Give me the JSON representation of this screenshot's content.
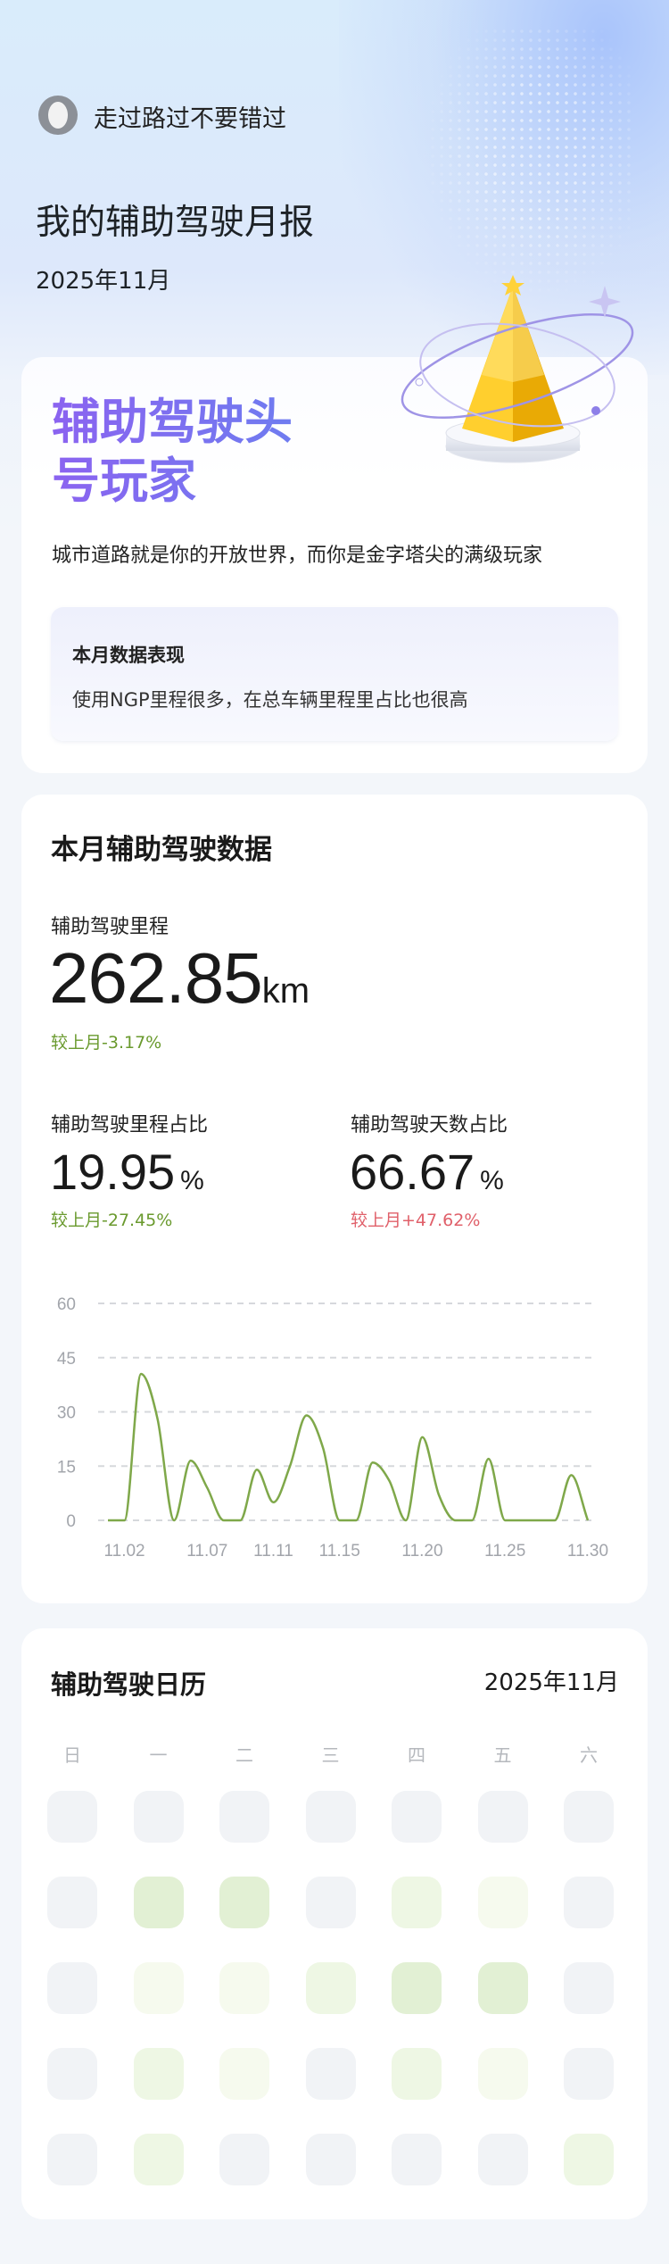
{
  "user": {
    "name": "走过路过不要错过"
  },
  "header": {
    "title": "我的辅助驾驶月报",
    "date": "2025年11月"
  },
  "badge_card": {
    "title_line1": "辅助驾驶头",
    "title_line2": "号玩家",
    "slogan": "城市道路就是你的开放世界，而你是金字塔尖的满级玩家",
    "performance": {
      "heading": "本月数据表现",
      "text": "使用NGP里程很多，在总车辆里程里占比也很高"
    },
    "icon": "gold-pyramid-trophy-icon",
    "accent": "#7b6ef0"
  },
  "stats": {
    "title": "本月辅助驾驶数据",
    "mileage": {
      "label": "辅助驾驶里程",
      "value": "262.85",
      "unit": "km",
      "change": "较上月-3.17%"
    },
    "mileage_ratio": {
      "label": "辅助驾驶里程占比",
      "value": "19.95",
      "unit": "%",
      "change": "较上月-27.45%"
    },
    "days_ratio": {
      "label": "辅助驾驶天数占比",
      "value": "66.67",
      "unit": "%",
      "change": "较上月+47.62%"
    },
    "colors": {
      "decrease": "#6a9a2e",
      "increase": "#e0606a"
    }
  },
  "chart_data": {
    "type": "line",
    "x_start_day": 1,
    "x": [
      "11.01",
      "11.02",
      "11.03",
      "11.04",
      "11.05",
      "11.06",
      "11.07",
      "11.08",
      "11.09",
      "11.10",
      "11.11",
      "11.12",
      "11.13",
      "11.14",
      "11.15",
      "11.16",
      "11.17",
      "11.18",
      "11.19",
      "11.20",
      "11.21",
      "11.22",
      "11.23",
      "11.24",
      "11.25",
      "11.26",
      "11.27",
      "11.28",
      "11.29",
      "11.30"
    ],
    "values": [
      0,
      0,
      40.5,
      28,
      0,
      16.5,
      9,
      0,
      0,
      14,
      5,
      15,
      29,
      20,
      0,
      0,
      16,
      11,
      0,
      23,
      7,
      0,
      0,
      17,
      0,
      0,
      0,
      0,
      12.5,
      0
    ],
    "x_tick_labels": [
      "11.02",
      "11.07",
      "11.11",
      "11.15",
      "11.20",
      "11.25",
      "11.30"
    ],
    "y_tick_labels": [
      "0",
      "15",
      "30",
      "45",
      "60"
    ],
    "ylim": [
      0,
      60
    ],
    "grid": true,
    "grid_style": "dashed",
    "line_color": "#7fa84a"
  },
  "calendar": {
    "title": "辅助驾驶日历",
    "month": "2025年11月",
    "weekdays": [
      "日",
      "一",
      "二",
      "三",
      "四",
      "五",
      "六"
    ],
    "levels": [
      [
        0,
        0,
        0,
        0,
        0,
        0,
        0
      ],
      [
        0,
        3,
        3,
        0,
        2,
        1,
        0
      ],
      [
        0,
        1,
        1,
        2,
        3,
        3,
        0
      ],
      [
        0,
        2,
        1,
        0,
        2,
        1,
        0
      ],
      [
        0,
        2,
        0,
        0,
        0,
        0,
        2
      ]
    ],
    "level_colors": [
      "#f1f3f6",
      "#f6faee",
      "#eef7e4",
      "#e2f0d4"
    ]
  }
}
